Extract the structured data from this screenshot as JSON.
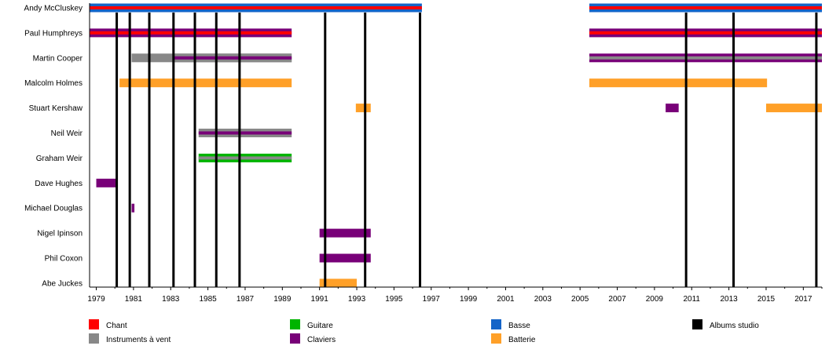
{
  "chart_data": {
    "type": "timeline",
    "xlim": [
      1978.64,
      2018.0
    ],
    "xticks": [
      1979,
      1981,
      1983,
      1985,
      1987,
      1989,
      1991,
      1993,
      1995,
      1997,
      1999,
      2001,
      2003,
      2005,
      2007,
      2009,
      2011,
      2013,
      2015,
      2017
    ],
    "colors": {
      "Chant": "#ff0000",
      "Instruments à vent": "#888888",
      "Guitare": "#00b400",
      "Claviers": "#780078",
      "Basse": "#1464c8",
      "Batterie": "#ffa028",
      "Albums studio": "#000000"
    },
    "legend": [
      {
        "label": "Chant",
        "role": "Chant"
      },
      {
        "label": "Instruments à vent",
        "role": "Instruments à vent"
      },
      {
        "label": "Guitare",
        "role": "Guitare"
      },
      {
        "label": "Claviers",
        "role": "Claviers"
      },
      {
        "label": "Basse",
        "role": "Basse"
      },
      {
        "label": "Batterie",
        "role": "Batterie"
      },
      {
        "label": "Albums studio",
        "role": "Albums studio"
      }
    ],
    "albums": [
      1980.1,
      1980.8,
      1981.85,
      1983.15,
      1984.3,
      1985.45,
      1986.7,
      1991.3,
      1993.45,
      1996.4,
      2010.7,
      2013.25,
      2017.7
    ],
    "members": [
      {
        "name": "Andy McCluskey",
        "bars": [
          {
            "start": 1978.64,
            "end": 1996.5,
            "outer": "Basse",
            "inner": "Chant"
          },
          {
            "start": 2005.5,
            "end": 2018.0,
            "outer": "Basse",
            "inner": "Chant"
          }
        ]
      },
      {
        "name": "Paul Humphreys",
        "bars": [
          {
            "start": 1978.64,
            "end": 1989.5,
            "outer": "Claviers",
            "inner": "Chant"
          },
          {
            "start": 2005.5,
            "end": 2018.0,
            "outer": "Claviers",
            "inner": "Chant"
          }
        ]
      },
      {
        "name": "Martin Cooper",
        "bars": [
          {
            "start": 1980.9,
            "end": 1989.5,
            "outer": "Instruments à vent"
          },
          {
            "start": 1983.2,
            "end": 1989.5,
            "outer": "Instruments à vent",
            "inner": "Claviers"
          },
          {
            "start": 2005.5,
            "end": 2018.0,
            "outer": "Claviers",
            "inner": "Instruments à vent"
          }
        ]
      },
      {
        "name": "Malcolm Holmes",
        "bars": [
          {
            "start": 1980.25,
            "end": 1989.5,
            "outer": "Batterie"
          },
          {
            "start": 2005.5,
            "end": 2015.05,
            "outer": "Batterie"
          }
        ]
      },
      {
        "name": "Stuart Kershaw",
        "bars": [
          {
            "start": 1992.95,
            "end": 1993.75,
            "outer": "Batterie"
          },
          {
            "start": 2009.6,
            "end": 2010.3,
            "outer": "Claviers"
          },
          {
            "start": 2015.0,
            "end": 2018.0,
            "outer": "Batterie"
          }
        ]
      },
      {
        "name": "Neil Weir",
        "bars": [
          {
            "start": 1984.5,
            "end": 1989.5,
            "outer": "Instruments à vent",
            "inner": "Claviers"
          }
        ]
      },
      {
        "name": "Graham Weir",
        "bars": [
          {
            "start": 1984.5,
            "end": 1989.5,
            "outer": "Guitare",
            "inner": "Instruments à vent"
          }
        ]
      },
      {
        "name": "Dave Hughes",
        "bars": [
          {
            "start": 1979.0,
            "end": 1980.05,
            "outer": "Claviers"
          }
        ]
      },
      {
        "name": "Michael Douglas",
        "bars": [
          {
            "start": 1980.9,
            "end": 1981.05,
            "outer": "Claviers"
          }
        ]
      },
      {
        "name": "Nigel Ipinson",
        "bars": [
          {
            "start": 1991.0,
            "end": 1993.75,
            "outer": "Claviers"
          }
        ]
      },
      {
        "name": "Phil Coxon",
        "bars": [
          {
            "start": 1991.0,
            "end": 1993.75,
            "outer": "Claviers"
          }
        ]
      },
      {
        "name": "Abe Juckes",
        "bars": [
          {
            "start": 1991.0,
            "end": 1993.0,
            "outer": "Batterie"
          }
        ]
      }
    ]
  }
}
